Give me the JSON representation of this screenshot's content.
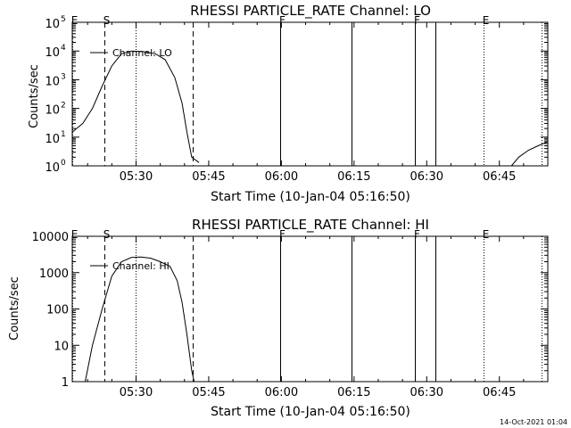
{
  "footer_date": "14-Oct-2021 01:04",
  "chart_data": [
    {
      "type": "line",
      "title": "RHESSI PARTICLE_RATE Channel: LO",
      "xlabel": "Start Time (10-Jan-04 05:16:50)",
      "ylabel": "Counts/sec",
      "yscale": "log",
      "xlim": [
        "05:16:50",
        "06:55:00"
      ],
      "ylim": [
        1,
        100000
      ],
      "x_ticks": [
        "05:30",
        "05:45",
        "06:00",
        "06:15",
        "06:30",
        "06:45"
      ],
      "y_ticks": [
        {
          "v": 1,
          "label": "10",
          "exp": "0"
        },
        {
          "v": 10,
          "label": "10",
          "exp": "1"
        },
        {
          "v": 100,
          "label": "10",
          "exp": "2"
        },
        {
          "v": 1000,
          "label": "10",
          "exp": "3"
        },
        {
          "v": 10000,
          "label": "10",
          "exp": "4"
        },
        {
          "v": 100000,
          "label": "10",
          "exp": "5"
        }
      ],
      "legend": {
        "label": "Channel: LO",
        "placement": "top-left"
      },
      "markers": [
        {
          "time": "05:16:50",
          "label": "E",
          "style": "dotted"
        },
        {
          "time": "05:23:30",
          "label": "S",
          "style": "dashed"
        },
        {
          "time": "05:30:00",
          "label": "",
          "style": "dotted"
        },
        {
          "time": "05:41:40",
          "label": "",
          "style": "dashed"
        },
        {
          "time": "05:59:40",
          "label": "F",
          "style": "solid"
        },
        {
          "time": "06:14:30",
          "label": "",
          "style": "solid"
        },
        {
          "time": "06:27:30",
          "label": "F",
          "style": "solid"
        },
        {
          "time": "06:31:50",
          "label": "",
          "style": "solid"
        },
        {
          "time": "06:41:40",
          "label": "E",
          "style": "dotted"
        },
        {
          "time": "06:53:40",
          "label": "",
          "style": "dotted"
        }
      ],
      "series": [
        {
          "segments": [
            [
              {
                "t": "05:16:50",
                "v": 15
              },
              {
                "t": "05:19:00",
                "v": 30
              },
              {
                "t": "05:21:00",
                "v": 100
              },
              {
                "t": "05:23:00",
                "v": 600
              },
              {
                "t": "05:25:00",
                "v": 3000
              },
              {
                "t": "05:27:00",
                "v": 8000
              },
              {
                "t": "05:29:00",
                "v": 10000
              },
              {
                "t": "05:31:30",
                "v": 9500
              },
              {
                "t": "05:34:00",
                "v": 8000
              },
              {
                "t": "05:36:00",
                "v": 5000
              },
              {
                "t": "05:38:00",
                "v": 1200
              },
              {
                "t": "05:39:30",
                "v": 150
              },
              {
                "t": "05:40:30",
                "v": 15
              },
              {
                "t": "05:41:30",
                "v": 2
              },
              {
                "t": "05:42:30",
                "v": 1.5
              },
              {
                "t": "05:43:00",
                "v": 1.3
              }
            ],
            [
              {
                "t": "06:47:30",
                "v": 1
              },
              {
                "t": "06:49:00",
                "v": 2
              },
              {
                "t": "06:51:00",
                "v": 3.5
              },
              {
                "t": "06:53:00",
                "v": 5
              },
              {
                "t": "06:55:00",
                "v": 7
              }
            ]
          ]
        }
      ]
    },
    {
      "type": "line",
      "title": "RHESSI PARTICLE_RATE Channel: HI",
      "xlabel": "Start Time (10-Jan-04 05:16:50)",
      "ylabel": "Counts/sec",
      "yscale": "log",
      "xlim": [
        "05:16:50",
        "06:55:00"
      ],
      "ylim": [
        1,
        10000
      ],
      "x_ticks": [
        "05:30",
        "05:45",
        "06:00",
        "06:15",
        "06:30",
        "06:45"
      ],
      "y_ticks": [
        {
          "v": 1,
          "label": "1"
        },
        {
          "v": 10,
          "label": "10"
        },
        {
          "v": 100,
          "label": "100"
        },
        {
          "v": 1000,
          "label": "1000"
        },
        {
          "v": 10000,
          "label": "10000"
        }
      ],
      "legend": {
        "label": "Channel: HI",
        "placement": "top-left"
      },
      "markers": [
        {
          "time": "05:16:50",
          "label": "E",
          "style": "dotted"
        },
        {
          "time": "05:23:30",
          "label": "S",
          "style": "dashed"
        },
        {
          "time": "05:30:00",
          "label": "",
          "style": "dotted"
        },
        {
          "time": "05:41:40",
          "label": "",
          "style": "dashed"
        },
        {
          "time": "05:59:40",
          "label": "F",
          "style": "solid"
        },
        {
          "time": "06:14:30",
          "label": "",
          "style": "solid"
        },
        {
          "time": "06:27:30",
          "label": "F",
          "style": "solid"
        },
        {
          "time": "06:31:50",
          "label": "",
          "style": "solid"
        },
        {
          "time": "06:41:40",
          "label": "E",
          "style": "dotted"
        },
        {
          "time": "06:53:40",
          "label": "",
          "style": "dotted"
        }
      ],
      "series": [
        {
          "segments": [
            [
              {
                "t": "05:19:30",
                "v": 1
              },
              {
                "t": "05:21:00",
                "v": 10
              },
              {
                "t": "05:23:00",
                "v": 100
              },
              {
                "t": "05:25:00",
                "v": 800
              },
              {
                "t": "05:27:00",
                "v": 2000
              },
              {
                "t": "05:29:00",
                "v": 2600
              },
              {
                "t": "05:31:00",
                "v": 2700
              },
              {
                "t": "05:33:00",
                "v": 2500
              },
              {
                "t": "05:35:00",
                "v": 2000
              },
              {
                "t": "05:37:00",
                "v": 1500
              },
              {
                "t": "05:38:30",
                "v": 600
              },
              {
                "t": "05:39:30",
                "v": 150
              },
              {
                "t": "05:40:30",
                "v": 20
              },
              {
                "t": "05:41:30",
                "v": 2
              },
              {
                "t": "05:42:00",
                "v": 1
              }
            ]
          ]
        }
      ]
    }
  ]
}
